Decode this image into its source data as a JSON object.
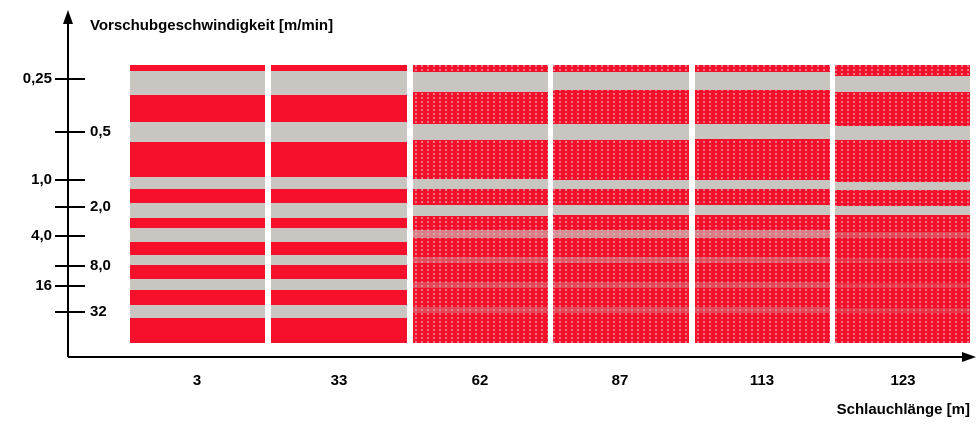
{
  "y_axis": {
    "label": "Vorschubgeschwindigkeit [m/min]",
    "ticks": [
      "0,25",
      "0,5",
      "1,0",
      "2,0",
      "4,0",
      "8,0",
      "16",
      "32"
    ]
  },
  "x_axis": {
    "label": "Schlauchlänge [m]",
    "ticks": [
      "3",
      "33",
      "62",
      "87",
      "113",
      "123"
    ]
  }
}
